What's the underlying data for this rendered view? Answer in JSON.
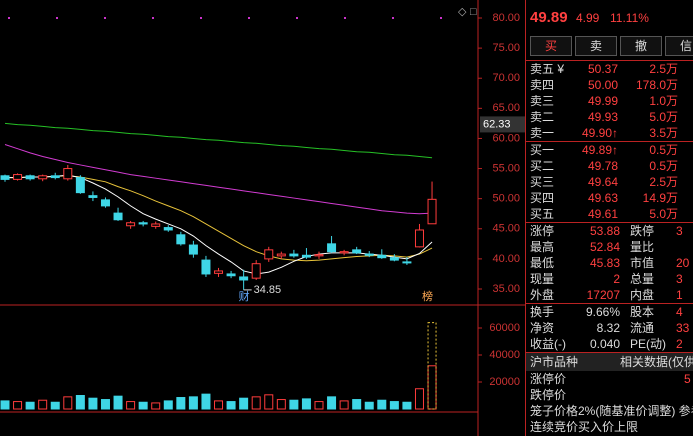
{
  "chart": {
    "price_ticks": [
      {
        "value": 80,
        "label": "80.00"
      },
      {
        "value": 75,
        "label": "75.00"
      },
      {
        "value": 70,
        "label": "70.00"
      },
      {
        "value": 65,
        "label": "65.00"
      },
      {
        "value": 60,
        "label": "60.00"
      },
      {
        "value": 55,
        "label": "55.00"
      },
      {
        "value": 50,
        "label": "50.00"
      },
      {
        "value": 45,
        "label": "45.00"
      },
      {
        "value": 40,
        "label": "40.00"
      },
      {
        "value": 35,
        "label": "35.00"
      }
    ],
    "price_marker": 62.33,
    "low_label": 34.85,
    "volume_ticks": [
      60000,
      40000,
      20000
    ],
    "markers": [
      "财",
      "榜"
    ],
    "candles": [
      [
        53.8,
        54.0,
        52.8,
        53.2
      ],
      [
        53.2,
        54.2,
        53.0,
        54.0
      ],
      [
        53.8,
        54.0,
        53.0,
        53.3
      ],
      [
        53.3,
        54.0,
        52.9,
        53.8
      ],
      [
        53.8,
        54.3,
        53.2,
        53.5
      ],
      [
        53.3,
        55.6,
        53.0,
        55.0
      ],
      [
        53.5,
        53.9,
        50.8,
        51.0
      ],
      [
        50.5,
        51.2,
        49.6,
        50.2
      ],
      [
        49.8,
        50.2,
        48.5,
        48.8
      ],
      [
        47.6,
        48.5,
        46.3,
        46.5
      ],
      [
        45.5,
        46.3,
        45.0,
        46.0
      ],
      [
        46.0,
        46.3,
        45.4,
        45.8
      ],
      [
        45.4,
        46.2,
        45.0,
        45.8
      ],
      [
        45.2,
        45.6,
        44.5,
        44.8
      ],
      [
        44.0,
        44.5,
        42.2,
        42.5
      ],
      [
        42.3,
        43.0,
        40.2,
        40.8
      ],
      [
        39.8,
        40.5,
        37.0,
        37.5
      ],
      [
        37.6,
        38.5,
        37.0,
        38.0
      ],
      [
        37.5,
        38.0,
        36.8,
        37.2
      ],
      [
        37.0,
        38.2,
        34.85,
        36.5
      ],
      [
        36.8,
        39.8,
        36.5,
        39.2
      ],
      [
        40.0,
        42.0,
        39.5,
        41.5
      ],
      [
        40.5,
        41.2,
        40.0,
        40.8
      ],
      [
        40.8,
        41.5,
        40.2,
        40.5
      ],
      [
        40.6,
        41.8,
        40.0,
        40.3
      ],
      [
        40.5,
        41.2,
        40.0,
        40.7
      ],
      [
        42.5,
        43.8,
        41.0,
        41.2
      ],
      [
        41.0,
        41.5,
        40.6,
        41.2
      ],
      [
        41.5,
        42.0,
        40.8,
        41.0
      ],
      [
        40.8,
        41.3,
        40.3,
        40.6
      ],
      [
        40.6,
        41.6,
        40.0,
        40.2
      ],
      [
        40.2,
        40.8,
        39.6,
        39.8
      ],
      [
        39.5,
        40.3,
        39.0,
        39.4
      ],
      [
        42.0,
        45.8,
        41.9,
        44.8
      ],
      [
        45.83,
        52.84,
        45.83,
        49.89
      ]
    ],
    "volumes": [
      6000,
      5500,
      5000,
      6500,
      5000,
      9000,
      10000,
      8000,
      7000,
      9500,
      5500,
      5000,
      4500,
      6000,
      8500,
      9000,
      11000,
      6000,
      5500,
      8000,
      9000,
      10500,
      7000,
      6500,
      7500,
      5500,
      9000,
      6000,
      7000,
      5000,
      6500,
      5500,
      5000,
      15000,
      32000
    ],
    "projected_volume": 64000,
    "averages": [
      {
        "color": "#26c126",
        "values": [
          62.5,
          62.3,
          62.2,
          62.0,
          61.8,
          61.7,
          61.5,
          61.3,
          61.2,
          61.0,
          60.8,
          60.7,
          60.5,
          60.3,
          60.2,
          60.0,
          59.8,
          59.7,
          59.5,
          59.3,
          59.2,
          59.0,
          58.8,
          58.7,
          58.5,
          58.3,
          58.2,
          58.0,
          57.8,
          57.7,
          57.5,
          57.3,
          57.2,
          57.0,
          56.8
        ]
      },
      {
        "color": "#d23cd2",
        "values": [
          59.0,
          58.3,
          57.6,
          57.0,
          56.5,
          56.0,
          55.6,
          55.2,
          54.8,
          54.4,
          54.0,
          53.7,
          53.4,
          53.1,
          52.8,
          52.5,
          52.2,
          51.9,
          51.6,
          51.3,
          51.0,
          50.7,
          50.4,
          50.1,
          49.8,
          49.5,
          49.2,
          48.9,
          48.6,
          48.3,
          48.0,
          47.8,
          47.6,
          47.5,
          47.6
        ]
      },
      {
        "color": "#e8c33a",
        "values": [
          53.5,
          53.5,
          53.6,
          53.6,
          53.7,
          53.8,
          53.6,
          53.2,
          52.8,
          52.0,
          51.3,
          50.5,
          49.6,
          48.8,
          48.0,
          47.0,
          45.8,
          44.6,
          43.4,
          42.2,
          41.2,
          40.5,
          40.0,
          39.8,
          39.7,
          39.8,
          40.0,
          40.2,
          40.4,
          40.5,
          40.6,
          40.5,
          40.3,
          40.8,
          41.8
        ]
      },
      {
        "color": "#ffffff",
        "values": [
          53.5,
          53.5,
          53.6,
          53.6,
          53.7,
          53.9,
          53.5,
          52.6,
          51.6,
          50.3,
          48.8,
          47.5,
          46.6,
          45.8,
          45.0,
          43.8,
          42.2,
          40.8,
          39.5,
          38.0,
          37.5,
          37.8,
          38.6,
          39.6,
          40.4,
          40.8,
          41.0,
          41.0,
          41.0,
          40.8,
          40.6,
          40.3,
          40.0,
          40.9,
          42.8
        ]
      }
    ]
  },
  "quote": {
    "price": "49.89",
    "change": "4.99",
    "percent": "11.11%"
  },
  "buttons": [
    "买",
    "卖",
    "撤",
    "信"
  ],
  "order_book": [
    {
      "label": "卖五 ¥",
      "price": "50.37",
      "volume": "2.5万"
    },
    {
      "label": "卖四",
      "price": "50.00",
      "volume": "178.0万"
    },
    {
      "label": "卖三",
      "price": "49.99",
      "volume": "1.0万"
    },
    {
      "label": "卖二",
      "price": "49.93",
      "volume": "5.0万"
    },
    {
      "label": "卖一",
      "price": "49.90↑",
      "volume": "3.5万"
    },
    {
      "label": "买一",
      "price": "49.89↑",
      "volume": "0.5万"
    },
    {
      "label": "买二",
      "price": "49.78",
      "volume": "0.5万"
    },
    {
      "label": "买三",
      "price": "49.64",
      "volume": "2.5万"
    },
    {
      "label": "买四",
      "price": "49.63",
      "volume": "14.9万"
    },
    {
      "label": "买五",
      "price": "49.61",
      "volume": "5.0万"
    }
  ],
  "stats": [
    [
      "涨停",
      "53.88",
      "跌停",
      "3"
    ],
    [
      "最高",
      "52.84",
      "量比",
      ""
    ],
    [
      "最低",
      "45.83",
      "市值",
      "20"
    ],
    [
      "现量",
      "2",
      "总量",
      "3"
    ],
    [
      "外盘",
      "17207",
      "内盘",
      "1"
    ],
    [
      "换手",
      "9.66%",
      "股本",
      "4"
    ],
    [
      "净资",
      "8.32",
      "流通",
      "33"
    ],
    [
      "收益(-)",
      "0.040",
      "PE(动)",
      "2"
    ]
  ],
  "section": {
    "title": "沪市品种",
    "right": "相关数据(仅供",
    "rows": [
      [
        "涨停价",
        "5"
      ],
      [
        "跌停价",
        ""
      ]
    ],
    "notes": [
      "笼子价格2%(随基准价调整) 参考",
      "连续竞价买入价上限"
    ]
  }
}
